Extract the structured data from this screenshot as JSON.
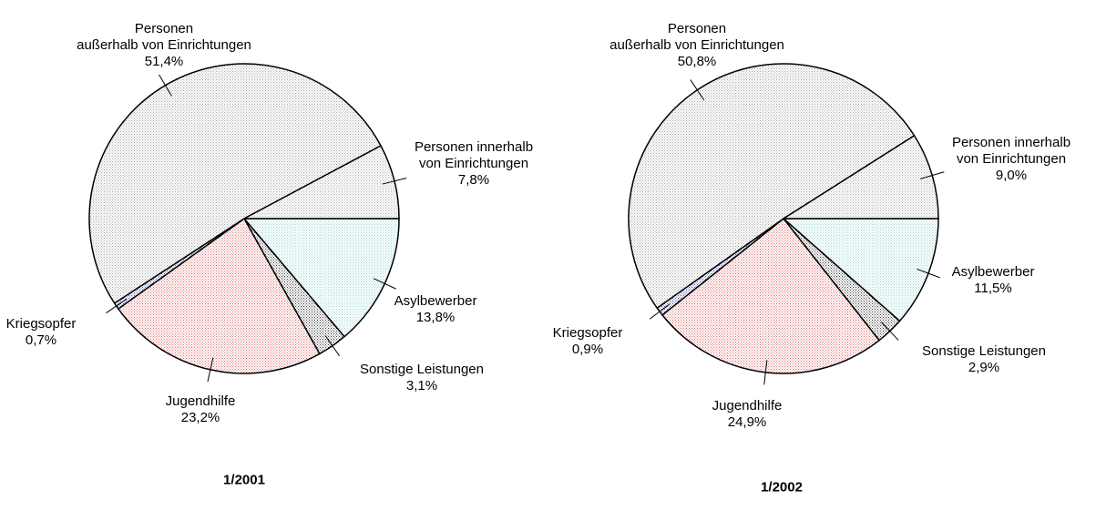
{
  "chart_data": [
    {
      "type": "pie",
      "title": "1/2001",
      "categories": [
        "Asylbewerber",
        "Sonstige Leistungen",
        "Jugendhilfe",
        "Kriegsopfer",
        "Personen\naußerhalb von Einrichtungen",
        "Personen innerhalb\nvon Einrichtungen"
      ],
      "values": [
        13.8,
        3.1,
        23.2,
        0.7,
        51.4,
        7.8
      ],
      "value_labels": [
        "13,8%",
        "3,1%",
        "23,2%",
        "0,7%",
        "51,4%",
        "7,8%"
      ],
      "colors": [
        "#9fd8d8",
        "#404040",
        "#e07070",
        "#4050a0",
        "#a8a8a8",
        "#b0b0b0"
      ]
    },
    {
      "type": "pie",
      "title": "1/2002",
      "categories": [
        "Asylbewerber",
        "Sonstige Leistungen",
        "Jugendhilfe",
        "Kriegsopfer",
        "Personen\naußerhalb von Einrichtungen",
        "Personen innerhalb\nvon Einrichtungen"
      ],
      "values": [
        11.5,
        2.9,
        24.9,
        0.9,
        50.8,
        9.0
      ],
      "value_labels": [
        "11,5%",
        "2,9%",
        "24,9%",
        "0,9%",
        "50,8%",
        "9,0%"
      ],
      "colors": [
        "#9fd8d8",
        "#404040",
        "#e07070",
        "#4050a0",
        "#a8a8a8",
        "#b0b0b0"
      ]
    }
  ]
}
